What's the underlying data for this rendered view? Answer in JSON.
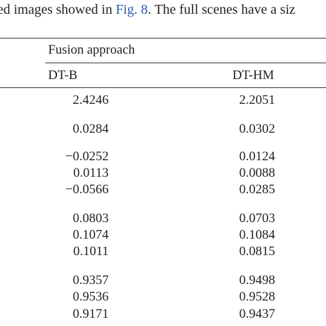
{
  "text": {
    "before": "ed images showed in ",
    "link": "Fig. 8",
    "after": ". The full scenes have a siz"
  },
  "table": {
    "group_header": "Fusion approach",
    "columns": [
      "DT-B",
      "DT-HM"
    ],
    "rows": [
      [
        "2.4246",
        "2.2051"
      ],
      [
        "0.0284",
        "0.0302"
      ],
      [
        "−0.0252",
        "0.0124"
      ],
      [
        "0.0113",
        "0.0088"
      ],
      [
        "−0.0566",
        "0.0285"
      ],
      [
        "0.0803",
        "0.0703"
      ],
      [
        "0.1074",
        "0.1084"
      ],
      [
        "0.1011",
        "0.0815"
      ],
      [
        "0.9357",
        "0.9498"
      ],
      [
        "0.9536",
        "0.9528"
      ],
      [
        "0.9171",
        "0.9437"
      ]
    ]
  }
}
